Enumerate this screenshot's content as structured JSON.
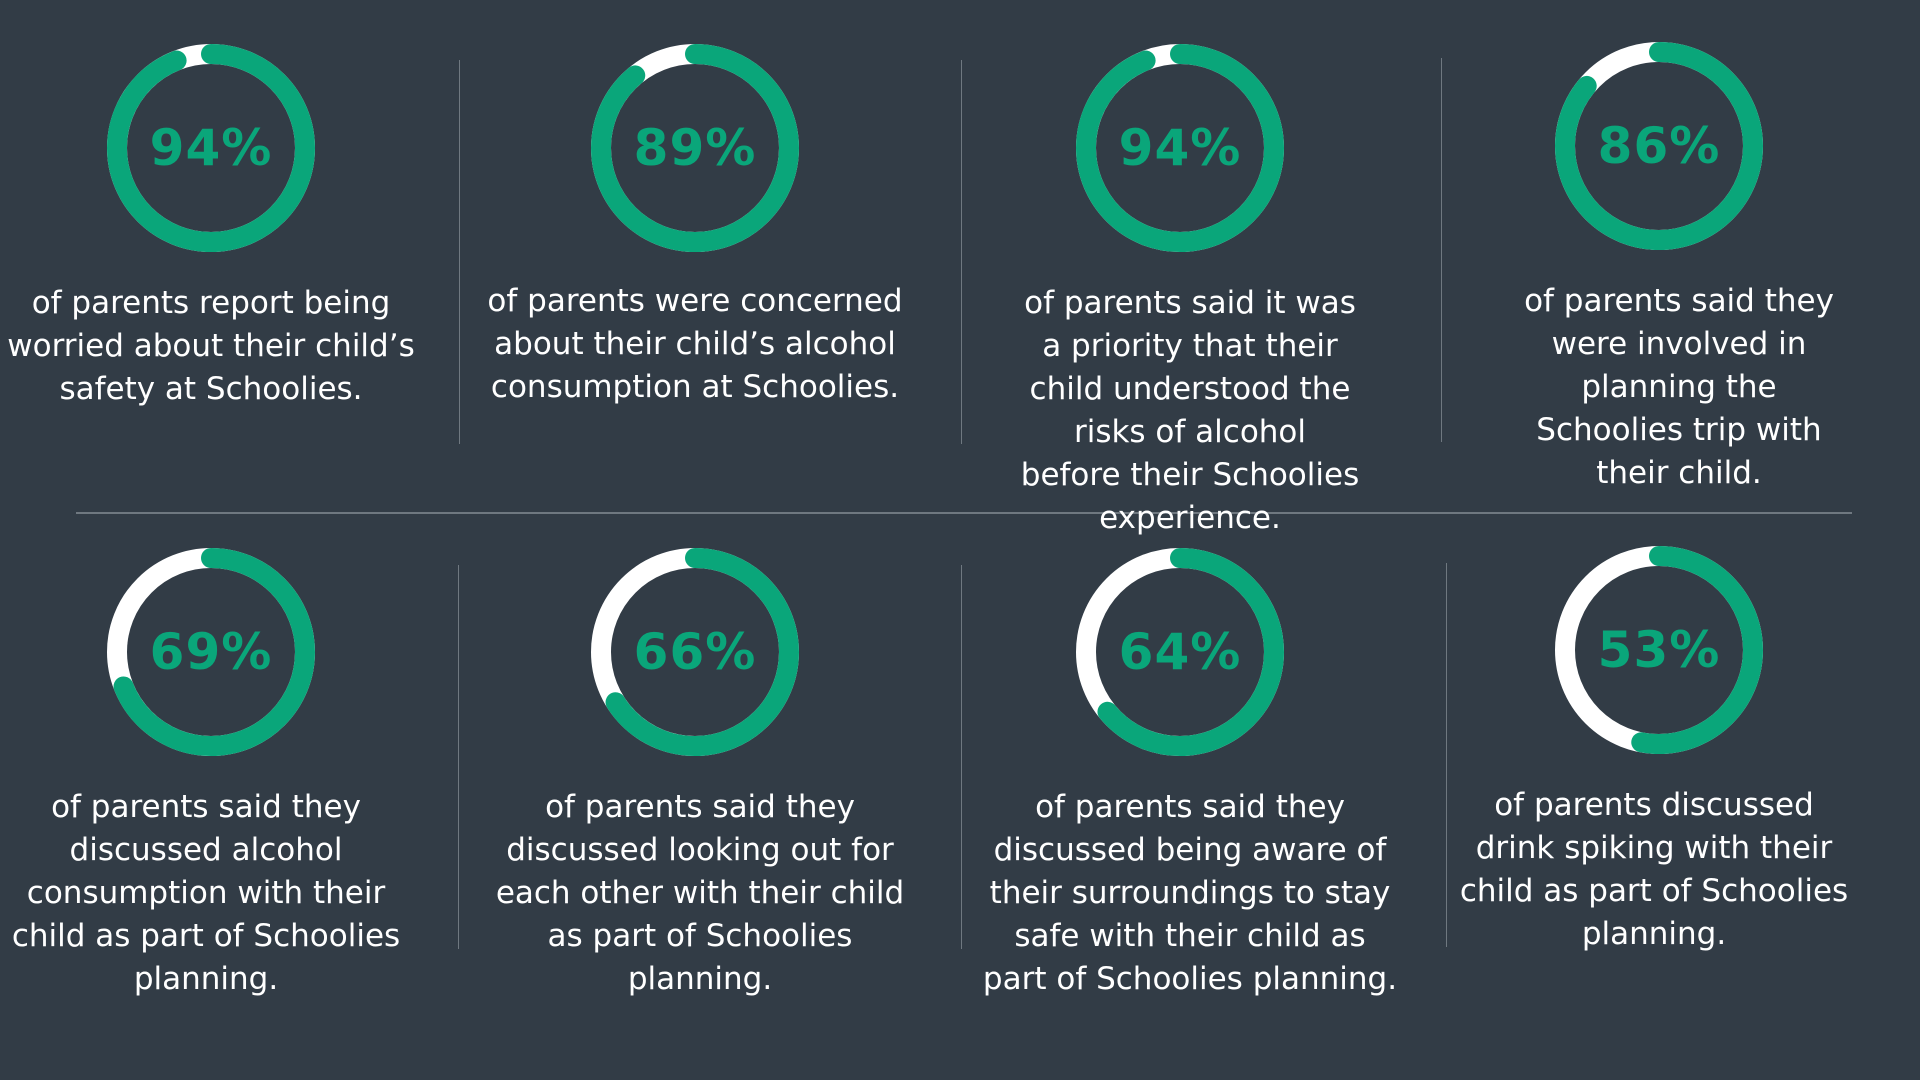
{
  "colors": {
    "background": "#323c46",
    "ring_fill": "#0aa67a",
    "ring_track": "#ffffff",
    "divider": "#6f7880",
    "text": "#ffffff"
  },
  "chart_data": {
    "type": "donut",
    "title": "",
    "unit": "%",
    "items": [
      {
        "value": 94,
        "label": "94%",
        "description": "of parents report being worried about their child’s safety at Schoolies."
      },
      {
        "value": 89,
        "label": "89%",
        "description": "of parents were concerned about their child’s alcohol consumption at Schoolies."
      },
      {
        "value": 94,
        "label": "94%",
        "description": "of parents said it was a priority that their child understood the risks of alcohol before their Schoolies experience."
      },
      {
        "value": 86,
        "label": "86%",
        "description": "of parents said they were involved in planning the Schoolies trip with their child."
      },
      {
        "value": 69,
        "label": "69%",
        "description": "of parents said they discussed alcohol consumption with their child as part of Schoolies planning."
      },
      {
        "value": 66,
        "label": "66%",
        "description": "of parents said they discussed looking out for each other with their child as part of Schoolies planning."
      },
      {
        "value": 64,
        "label": "64%",
        "description": "of parents said they discussed being aware of their surroundings to stay safe with their child as part of Schoolies planning."
      },
      {
        "value": 53,
        "label": "53%",
        "description": "of parents discussed drink spiking with their child as part of Schoolies planning."
      }
    ]
  }
}
